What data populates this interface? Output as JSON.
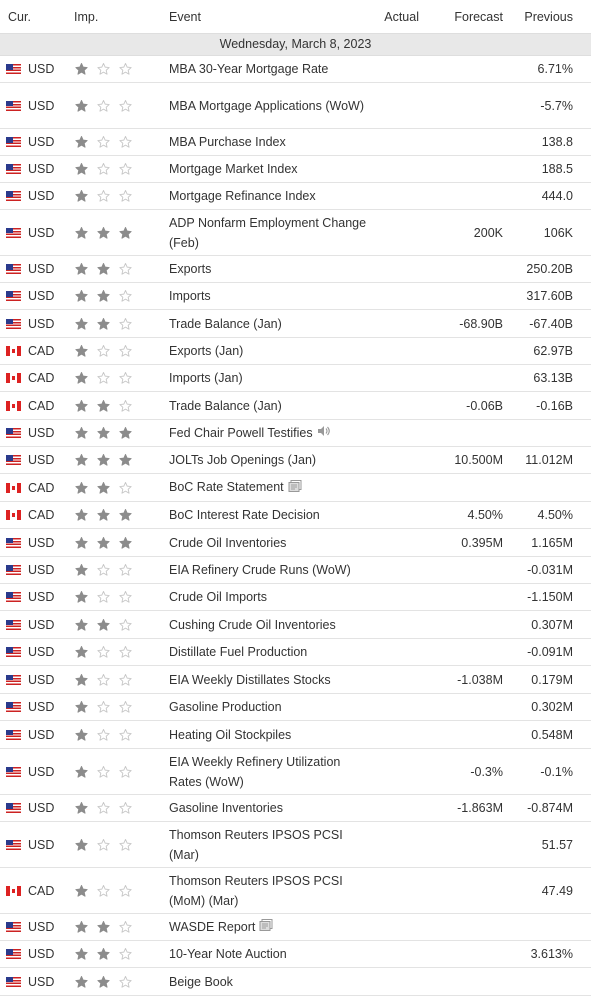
{
  "headers": {
    "currency": "Cur.",
    "importance": "Imp.",
    "event": "Event",
    "actual": "Actual",
    "forecast": "Forecast",
    "previous": "Previous"
  },
  "date": "Wednesday, March 8, 2023",
  "colors": {
    "star_filled": "#8c8c8c",
    "star_empty": "#c8c8c8",
    "date_band": "#e8e8e8"
  },
  "rows": [
    {
      "flag": "us",
      "currency": "USD",
      "importance": 1,
      "event": "MBA 30-Year Mortgage Rate",
      "actual": "",
      "forecast": "",
      "previous": "6.71%",
      "h": 27
    },
    {
      "flag": "us",
      "currency": "USD",
      "importance": 1,
      "event": "MBA Mortgage Applications (WoW)",
      "actual": "",
      "forecast": "",
      "previous": "-5.7%",
      "h": 46
    },
    {
      "flag": "us",
      "currency": "USD",
      "importance": 1,
      "event": "MBA Purchase Index",
      "actual": "",
      "forecast": "",
      "previous": "138.8",
      "h": 27
    },
    {
      "flag": "us",
      "currency": "USD",
      "importance": 1,
      "event": "Mortgage Market Index",
      "actual": "",
      "forecast": "",
      "previous": "188.5",
      "h": 27
    },
    {
      "flag": "us",
      "currency": "USD",
      "importance": 1,
      "event": "Mortgage Refinance Index",
      "actual": "",
      "forecast": "",
      "previous": "444.0",
      "h": 27
    },
    {
      "flag": "us",
      "currency": "USD",
      "importance": 3,
      "event": "ADP Nonfarm Employment Change (Feb)",
      "actual": "",
      "forecast": "200K",
      "previous": "106K",
      "h": 46
    },
    {
      "flag": "us",
      "currency": "USD",
      "importance": 2,
      "event": "Exports",
      "actual": "",
      "forecast": "",
      "previous": "250.20B",
      "h": 27
    },
    {
      "flag": "us",
      "currency": "USD",
      "importance": 2,
      "event": "Imports",
      "actual": "",
      "forecast": "",
      "previous": "317.60B",
      "h": 27
    },
    {
      "flag": "us",
      "currency": "USD",
      "importance": 2,
      "event": "Trade Balance (Jan)",
      "actual": "",
      "forecast": "-68.90B",
      "previous": "-67.40B",
      "h": 28
    },
    {
      "flag": "ca",
      "currency": "CAD",
      "importance": 1,
      "event": "Exports (Jan)",
      "actual": "",
      "forecast": "",
      "previous": "62.97B",
      "h": 27
    },
    {
      "flag": "ca",
      "currency": "CAD",
      "importance": 1,
      "event": "Imports (Jan)",
      "actual": "",
      "forecast": "",
      "previous": "63.13B",
      "h": 27
    },
    {
      "flag": "ca",
      "currency": "CAD",
      "importance": 2,
      "event": "Trade Balance (Jan)",
      "actual": "",
      "forecast": "-0.06B",
      "previous": "-0.16B",
      "h": 28
    },
    {
      "flag": "us",
      "currency": "USD",
      "importance": 3,
      "event": "Fed Chair Powell Testifies",
      "actual": "",
      "forecast": "",
      "previous": "",
      "h": 27,
      "icon": "speaker-icon"
    },
    {
      "flag": "us",
      "currency": "USD",
      "importance": 3,
      "event": "JOLTs Job Openings (Jan)",
      "actual": "",
      "forecast": "10.500M",
      "previous": "11.012M",
      "h": 27
    },
    {
      "flag": "ca",
      "currency": "CAD",
      "importance": 2,
      "event": "BoC Rate Statement",
      "actual": "",
      "forecast": "",
      "previous": "",
      "h": 28,
      "icon": "document-icon"
    },
    {
      "flag": "ca",
      "currency": "CAD",
      "importance": 3,
      "event": "BoC Interest Rate Decision",
      "actual": "",
      "forecast": "4.50%",
      "previous": "4.50%",
      "h": 27
    },
    {
      "flag": "us",
      "currency": "USD",
      "importance": 3,
      "event": "Crude Oil Inventories",
      "actual": "",
      "forecast": "0.395M",
      "previous": "1.165M",
      "h": 28
    },
    {
      "flag": "us",
      "currency": "USD",
      "importance": 1,
      "event": "EIA Refinery Crude Runs (WoW)",
      "actual": "",
      "forecast": "",
      "previous": "-0.031M",
      "h": 27
    },
    {
      "flag": "us",
      "currency": "USD",
      "importance": 1,
      "event": "Crude Oil Imports",
      "actual": "",
      "forecast": "",
      "previous": "-1.150M",
      "h": 27
    },
    {
      "flag": "us",
      "currency": "USD",
      "importance": 2,
      "event": "Cushing Crude Oil Inventories",
      "actual": "",
      "forecast": "",
      "previous": "0.307M",
      "h": 28
    },
    {
      "flag": "us",
      "currency": "USD",
      "importance": 1,
      "event": "Distillate Fuel Production",
      "actual": "",
      "forecast": "",
      "previous": "-0.091M",
      "h": 27
    },
    {
      "flag": "us",
      "currency": "USD",
      "importance": 1,
      "event": "EIA Weekly Distillates Stocks",
      "actual": "",
      "forecast": "-1.038M",
      "previous": "0.179M",
      "h": 28
    },
    {
      "flag": "us",
      "currency": "USD",
      "importance": 1,
      "event": "Gasoline Production",
      "actual": "",
      "forecast": "",
      "previous": "0.302M",
      "h": 27
    },
    {
      "flag": "us",
      "currency": "USD",
      "importance": 1,
      "event": "Heating Oil Stockpiles",
      "actual": "",
      "forecast": "",
      "previous": "0.548M",
      "h": 28
    },
    {
      "flag": "us",
      "currency": "USD",
      "importance": 1,
      "event": "EIA Weekly Refinery Utilization Rates (WoW)",
      "actual": "",
      "forecast": "-0.3%",
      "previous": "-0.1%",
      "h": 46
    },
    {
      "flag": "us",
      "currency": "USD",
      "importance": 1,
      "event": "Gasoline Inventories",
      "actual": "",
      "forecast": "-1.863M",
      "previous": "-0.874M",
      "h": 27
    },
    {
      "flag": "us",
      "currency": "USD",
      "importance": 1,
      "event": "Thomson Reuters IPSOS PCSI (Mar)",
      "actual": "",
      "forecast": "",
      "previous": "51.57",
      "h": 46
    },
    {
      "flag": "ca",
      "currency": "CAD",
      "importance": 1,
      "event": "Thomson Reuters IPSOS PCSI (MoM) (Mar)",
      "actual": "",
      "forecast": "",
      "previous": "47.49",
      "h": 46
    },
    {
      "flag": "us",
      "currency": "USD",
      "importance": 2,
      "event": "WASDE Report",
      "actual": "",
      "forecast": "",
      "previous": "",
      "h": 27,
      "icon": "document-icon"
    },
    {
      "flag": "us",
      "currency": "USD",
      "importance": 2,
      "event": "10-Year Note Auction",
      "actual": "",
      "forecast": "",
      "previous": "3.613%",
      "h": 27
    },
    {
      "flag": "us",
      "currency": "USD",
      "importance": 2,
      "event": "Beige Book",
      "actual": "",
      "forecast": "",
      "previous": "",
      "h": 28
    }
  ]
}
